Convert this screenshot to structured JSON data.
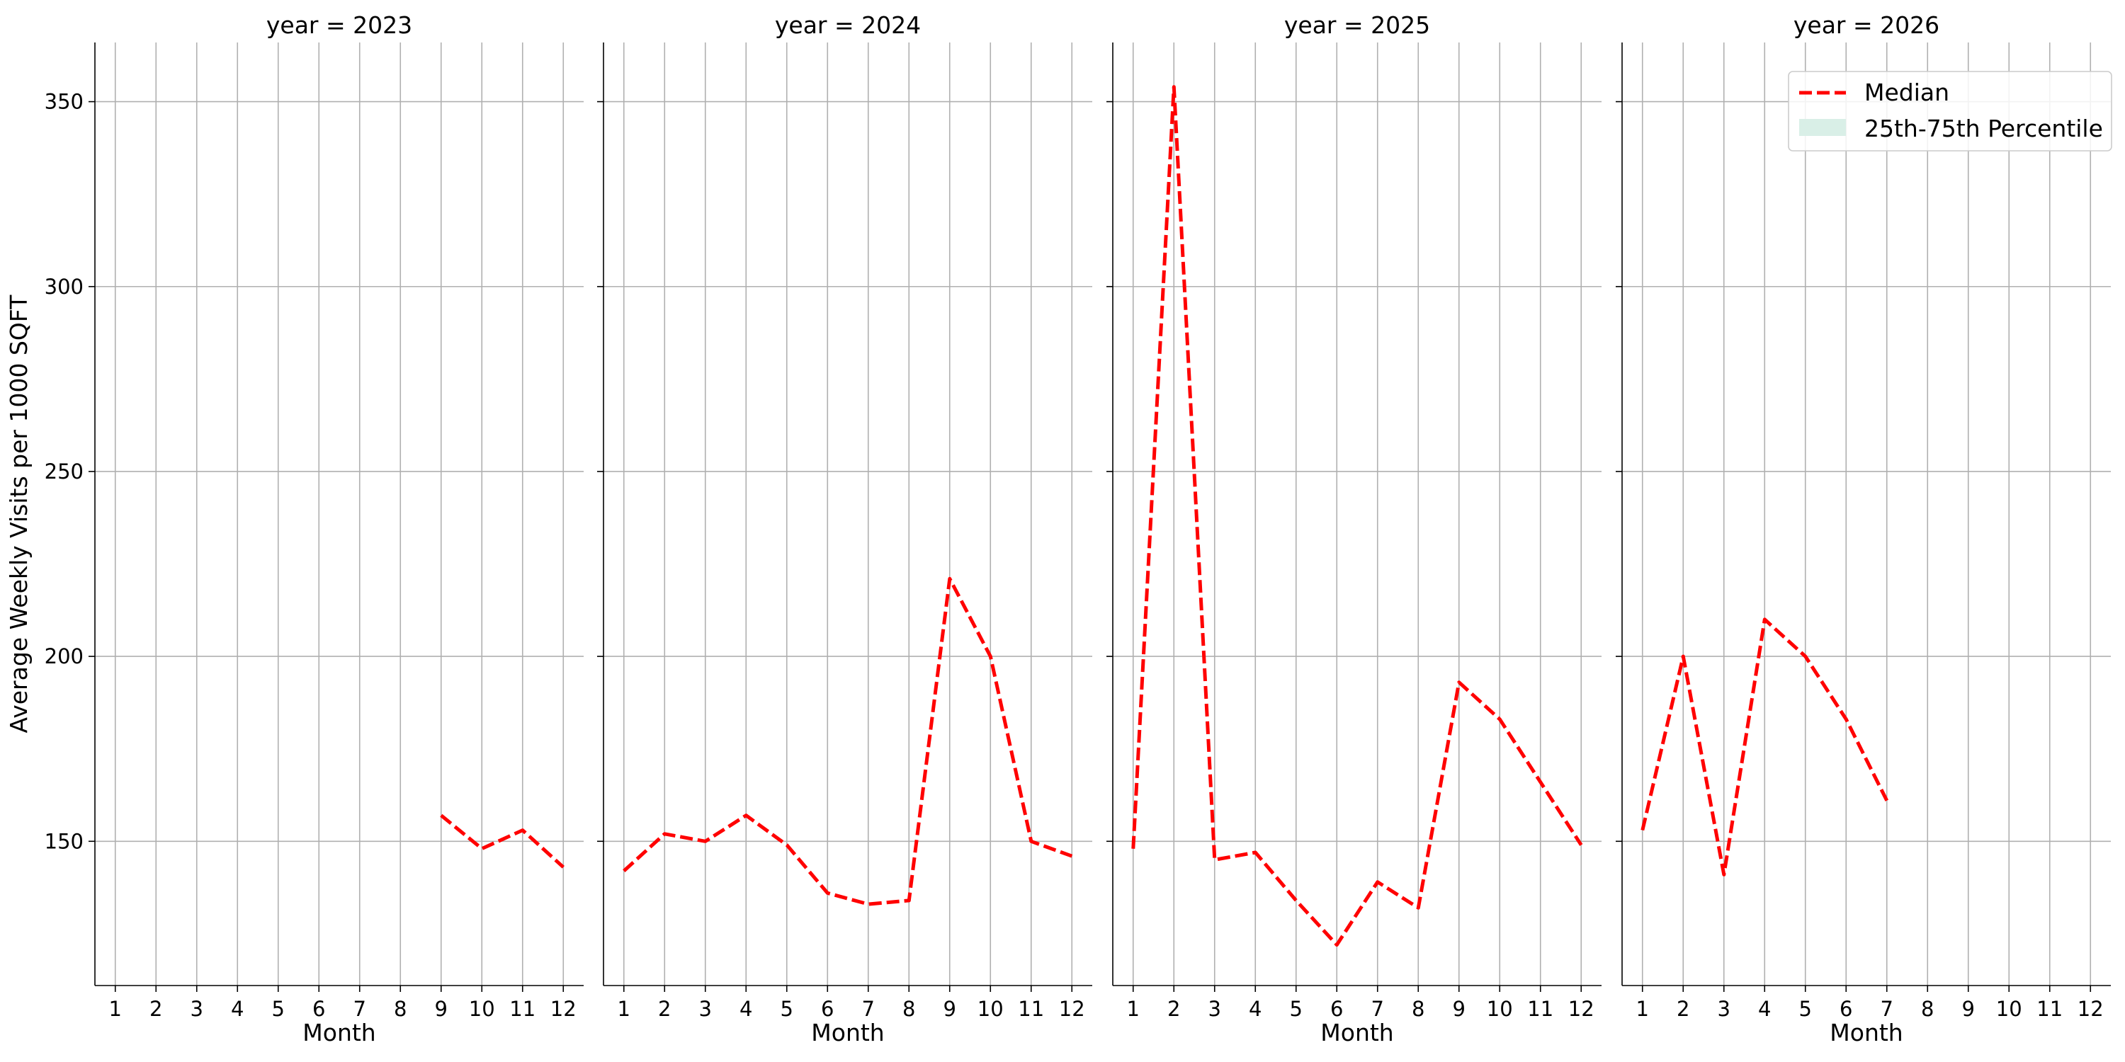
{
  "chart_data": [
    {
      "type": "line",
      "title": "year = 2023",
      "xlabel": "Month",
      "ylabel": "Average Weekly Visits per 1000 SQFT",
      "x": [
        1,
        2,
        3,
        4,
        5,
        6,
        7,
        8,
        9,
        10,
        11,
        12
      ],
      "xlim": [
        0.5,
        12.5
      ],
      "ylim": [
        111,
        366
      ],
      "yticks": [
        150,
        200,
        250,
        300,
        350
      ],
      "grid": true,
      "series": [
        {
          "name": "Median",
          "points": [
            [
              9,
              157
            ],
            [
              10,
              148
            ],
            [
              11,
              153
            ],
            [
              12,
              143
            ]
          ]
        }
      ]
    },
    {
      "type": "line",
      "title": "year = 2024",
      "xlabel": "Month",
      "x": [
        1,
        2,
        3,
        4,
        5,
        6,
        7,
        8,
        9,
        10,
        11,
        12
      ],
      "xlim": [
        0.5,
        12.5
      ],
      "ylim": [
        111,
        366
      ],
      "yticks": [
        150,
        200,
        250,
        300,
        350
      ],
      "grid": true,
      "series": [
        {
          "name": "Median",
          "points": [
            [
              1,
              142
            ],
            [
              2,
              152
            ],
            [
              3,
              150
            ],
            [
              4,
              157
            ],
            [
              5,
              149
            ],
            [
              6,
              136
            ],
            [
              7,
              133
            ],
            [
              8,
              134
            ],
            [
              9,
              221
            ],
            [
              10,
              200
            ],
            [
              11,
              150
            ],
            [
              12,
              146
            ]
          ]
        }
      ]
    },
    {
      "type": "line",
      "title": "year = 2025",
      "xlabel": "Month",
      "x": [
        1,
        2,
        3,
        4,
        5,
        6,
        7,
        8,
        9,
        10,
        11,
        12
      ],
      "xlim": [
        0.5,
        12.5
      ],
      "ylim": [
        111,
        366
      ],
      "yticks": [
        150,
        200,
        250,
        300,
        350
      ],
      "grid": true,
      "series": [
        {
          "name": "Median",
          "points": [
            [
              1,
              148
            ],
            [
              2,
              354
            ],
            [
              3,
              145
            ],
            [
              4,
              147
            ],
            [
              5,
              134
            ],
            [
              6,
              122
            ],
            [
              7,
              139
            ],
            [
              8,
              132
            ],
            [
              9,
              193
            ],
            [
              10,
              183
            ],
            [
              11,
              166
            ],
            [
              12,
              149
            ]
          ]
        }
      ]
    },
    {
      "type": "line",
      "title": "year = 2026",
      "xlabel": "Month",
      "x": [
        1,
        2,
        3,
        4,
        5,
        6,
        7,
        8,
        9,
        10,
        11,
        12
      ],
      "xlim": [
        0.5,
        12.5
      ],
      "ylim": [
        111,
        366
      ],
      "yticks": [
        150,
        200,
        250,
        300,
        350
      ],
      "grid": true,
      "series": [
        {
          "name": "Median",
          "points": [
            [
              1,
              153
            ],
            [
              2,
              200
            ],
            [
              3,
              141
            ],
            [
              4,
              210
            ],
            [
              5,
              200
            ],
            [
              6,
              183
            ],
            [
              7,
              161
            ]
          ]
        }
      ]
    }
  ],
  "legend": {
    "placement": "top-right",
    "items": [
      {
        "label": "Median",
        "style": "dashed-line",
        "color": "#ff0000"
      },
      {
        "label": "25th-75th Percentile",
        "style": "band",
        "color": "#d9efe7"
      }
    ]
  }
}
